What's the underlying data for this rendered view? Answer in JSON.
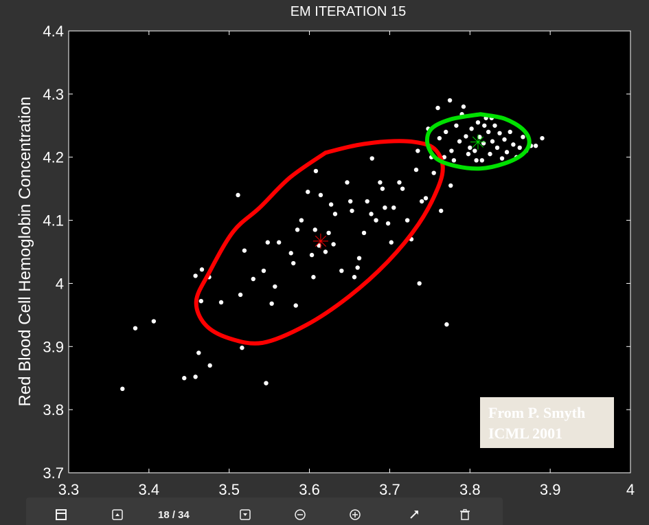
{
  "chart_data": {
    "type": "scatter",
    "title": "EM ITERATION 15",
    "xlabel": "",
    "ylabel": "Red Blood Cell Hemoglobin Concentration",
    "xlim": [
      3.3,
      4.0
    ],
    "ylim": [
      3.7,
      4.4
    ],
    "xticks": [
      "3.3",
      "3.4",
      "3.5",
      "3.6",
      "3.7",
      "3.8",
      "3.9",
      "4"
    ],
    "yticks": [
      "3.7",
      "3.8",
      "3.9",
      "4",
      "4.1",
      "4.2",
      "4.3",
      "4.4"
    ],
    "grid": false,
    "background": "#000000",
    "point_color": "#ffffff",
    "points": [
      [
        3.367,
        3.833
      ],
      [
        3.383,
        3.929
      ],
      [
        3.406,
        3.94
      ],
      [
        3.444,
        3.85
      ],
      [
        3.458,
        3.852
      ],
      [
        3.462,
        3.89
      ],
      [
        3.476,
        3.87
      ],
      [
        3.458,
        4.012
      ],
      [
        3.466,
        4.022
      ],
      [
        3.475,
        4.01
      ],
      [
        3.465,
        3.972
      ],
      [
        3.49,
        3.97
      ],
      [
        3.514,
        3.982
      ],
      [
        3.516,
        3.898
      ],
      [
        3.53,
        4.007
      ],
      [
        3.543,
        4.02
      ],
      [
        3.546,
        3.842
      ],
      [
        3.511,
        4.14
      ],
      [
        3.519,
        4.052
      ],
      [
        3.548,
        4.065
      ],
      [
        3.553,
        3.968
      ],
      [
        3.557,
        3.995
      ],
      [
        3.562,
        4.065
      ],
      [
        3.577,
        4.048
      ],
      [
        3.58,
        4.032
      ],
      [
        3.583,
        3.965
      ],
      [
        3.585,
        4.085
      ],
      [
        3.59,
        4.1
      ],
      [
        3.605,
        4.01
      ],
      [
        3.603,
        4.045
      ],
      [
        3.607,
        4.085
      ],
      [
        3.612,
        4.06
      ],
      [
        3.62,
        4.05
      ],
      [
        3.624,
        4.08
      ],
      [
        3.63,
        4.062
      ],
      [
        3.614,
        4.14
      ],
      [
        3.627,
        4.125
      ],
      [
        3.632,
        4.11
      ],
      [
        3.64,
        4.02
      ],
      [
        3.647,
        4.16
      ],
      [
        3.651,
        4.13
      ],
      [
        3.653,
        4.115
      ],
      [
        3.656,
        4.01
      ],
      [
        3.66,
        4.025
      ],
      [
        3.662,
        4.04
      ],
      [
        3.668,
        4.08
      ],
      [
        3.672,
        4.13
      ],
      [
        3.677,
        4.11
      ],
      [
        3.683,
        4.1
      ],
      [
        3.688,
        4.16
      ],
      [
        3.691,
        4.15
      ],
      [
        3.694,
        4.12
      ],
      [
        3.698,
        4.095
      ],
      [
        3.702,
        4.065
      ],
      [
        3.705,
        4.12
      ],
      [
        3.712,
        4.16
      ],
      [
        3.716,
        4.15
      ],
      [
        3.722,
        4.1
      ],
      [
        3.727,
        4.07
      ],
      [
        3.737,
        4.0
      ],
      [
        3.74,
        4.13
      ],
      [
        3.745,
        4.135
      ],
      [
        3.678,
        4.198
      ],
      [
        3.608,
        4.178
      ],
      [
        3.598,
        4.145
      ],
      [
        3.733,
        4.18
      ],
      [
        3.735,
        4.21
      ],
      [
        3.752,
        4.2
      ],
      [
        3.755,
        4.175
      ],
      [
        3.764,
        4.115
      ],
      [
        3.771,
        3.935
      ],
      [
        3.776,
        4.155
      ],
      [
        3.76,
        4.278
      ],
      [
        3.748,
        4.245
      ],
      [
        3.762,
        4.23
      ],
      [
        3.77,
        4.24
      ],
      [
        3.777,
        4.21
      ],
      [
        3.783,
        4.25
      ],
      [
        3.787,
        4.225
      ],
      [
        3.79,
        4.268
      ],
      [
        3.795,
        4.233
      ],
      [
        3.798,
        4.205
      ],
      [
        3.802,
        4.245
      ],
      [
        3.806,
        4.21
      ],
      [
        3.81,
        4.255
      ],
      [
        3.812,
        4.232
      ],
      [
        3.815,
        4.195
      ],
      [
        3.817,
        4.222
      ],
      [
        3.82,
        4.262
      ],
      [
        3.823,
        4.24
      ],
      [
        3.825,
        4.205
      ],
      [
        3.828,
        4.225
      ],
      [
        3.831,
        4.25
      ],
      [
        3.834,
        4.215
      ],
      [
        3.837,
        4.238
      ],
      [
        3.84,
        4.198
      ],
      [
        3.843,
        4.228
      ],
      [
        3.846,
        4.208
      ],
      [
        3.85,
        4.24
      ],
      [
        3.854,
        4.22
      ],
      [
        3.858,
        4.2
      ],
      [
        3.862,
        4.215
      ],
      [
        3.866,
        4.232
      ],
      [
        3.87,
        4.21
      ],
      [
        3.876,
        4.218
      ],
      [
        3.882,
        4.218
      ],
      [
        3.89,
        4.23
      ],
      [
        3.775,
        4.29
      ],
      [
        3.792,
        4.28
      ],
      [
        3.78,
        4.195
      ],
      [
        3.768,
        4.2
      ],
      [
        3.8,
        4.215
      ],
      [
        3.808,
        4.195
      ],
      [
        3.818,
        4.25
      ],
      [
        3.827,
        4.262
      ]
    ],
    "components": [
      {
        "color": "#ff0000",
        "center": [
          3.614,
          4.067
        ],
        "ellipse": [
          [
            3.62,
            4.207
          ],
          [
            3.659,
            4.219
          ],
          [
            3.698,
            4.225
          ],
          [
            3.731,
            4.224
          ],
          [
            3.755,
            4.214
          ],
          [
            3.766,
            4.187
          ],
          [
            3.76,
            4.151
          ],
          [
            3.736,
            4.094
          ],
          [
            3.698,
            4.035
          ],
          [
            3.649,
            3.979
          ],
          [
            3.596,
            3.934
          ],
          [
            3.542,
            3.906
          ],
          [
            3.5,
            3.913
          ],
          [
            3.47,
            3.935
          ],
          [
            3.459,
            3.972
          ],
          [
            3.475,
            4.017
          ],
          [
            3.505,
            4.082
          ],
          [
            3.538,
            4.12
          ],
          [
            3.576,
            4.168
          ],
          [
            3.62,
            4.207
          ]
        ]
      },
      {
        "color": "#00e000",
        "center": [
          3.81,
          4.224
        ],
        "ellipse": [
          [
            3.813,
            4.268
          ],
          [
            3.843,
            4.261
          ],
          [
            3.866,
            4.244
          ],
          [
            3.874,
            4.224
          ],
          [
            3.866,
            4.205
          ],
          [
            3.843,
            4.19
          ],
          [
            3.813,
            4.182
          ],
          [
            3.782,
            4.186
          ],
          [
            3.758,
            4.198
          ],
          [
            3.747,
            4.222
          ],
          [
            3.752,
            4.245
          ],
          [
            3.776,
            4.26
          ],
          [
            3.813,
            4.268
          ]
        ]
      }
    ]
  },
  "annotation": {
    "line1": "From P. Smyth",
    "line2": "ICML 2001"
  },
  "toolbar": {
    "page_indicator": "18 / 34",
    "icons": [
      "panel-icon",
      "page-up-icon",
      "page-down-icon",
      "zoom-out-icon",
      "zoom-in-icon",
      "expand-icon",
      "delete-icon"
    ]
  }
}
